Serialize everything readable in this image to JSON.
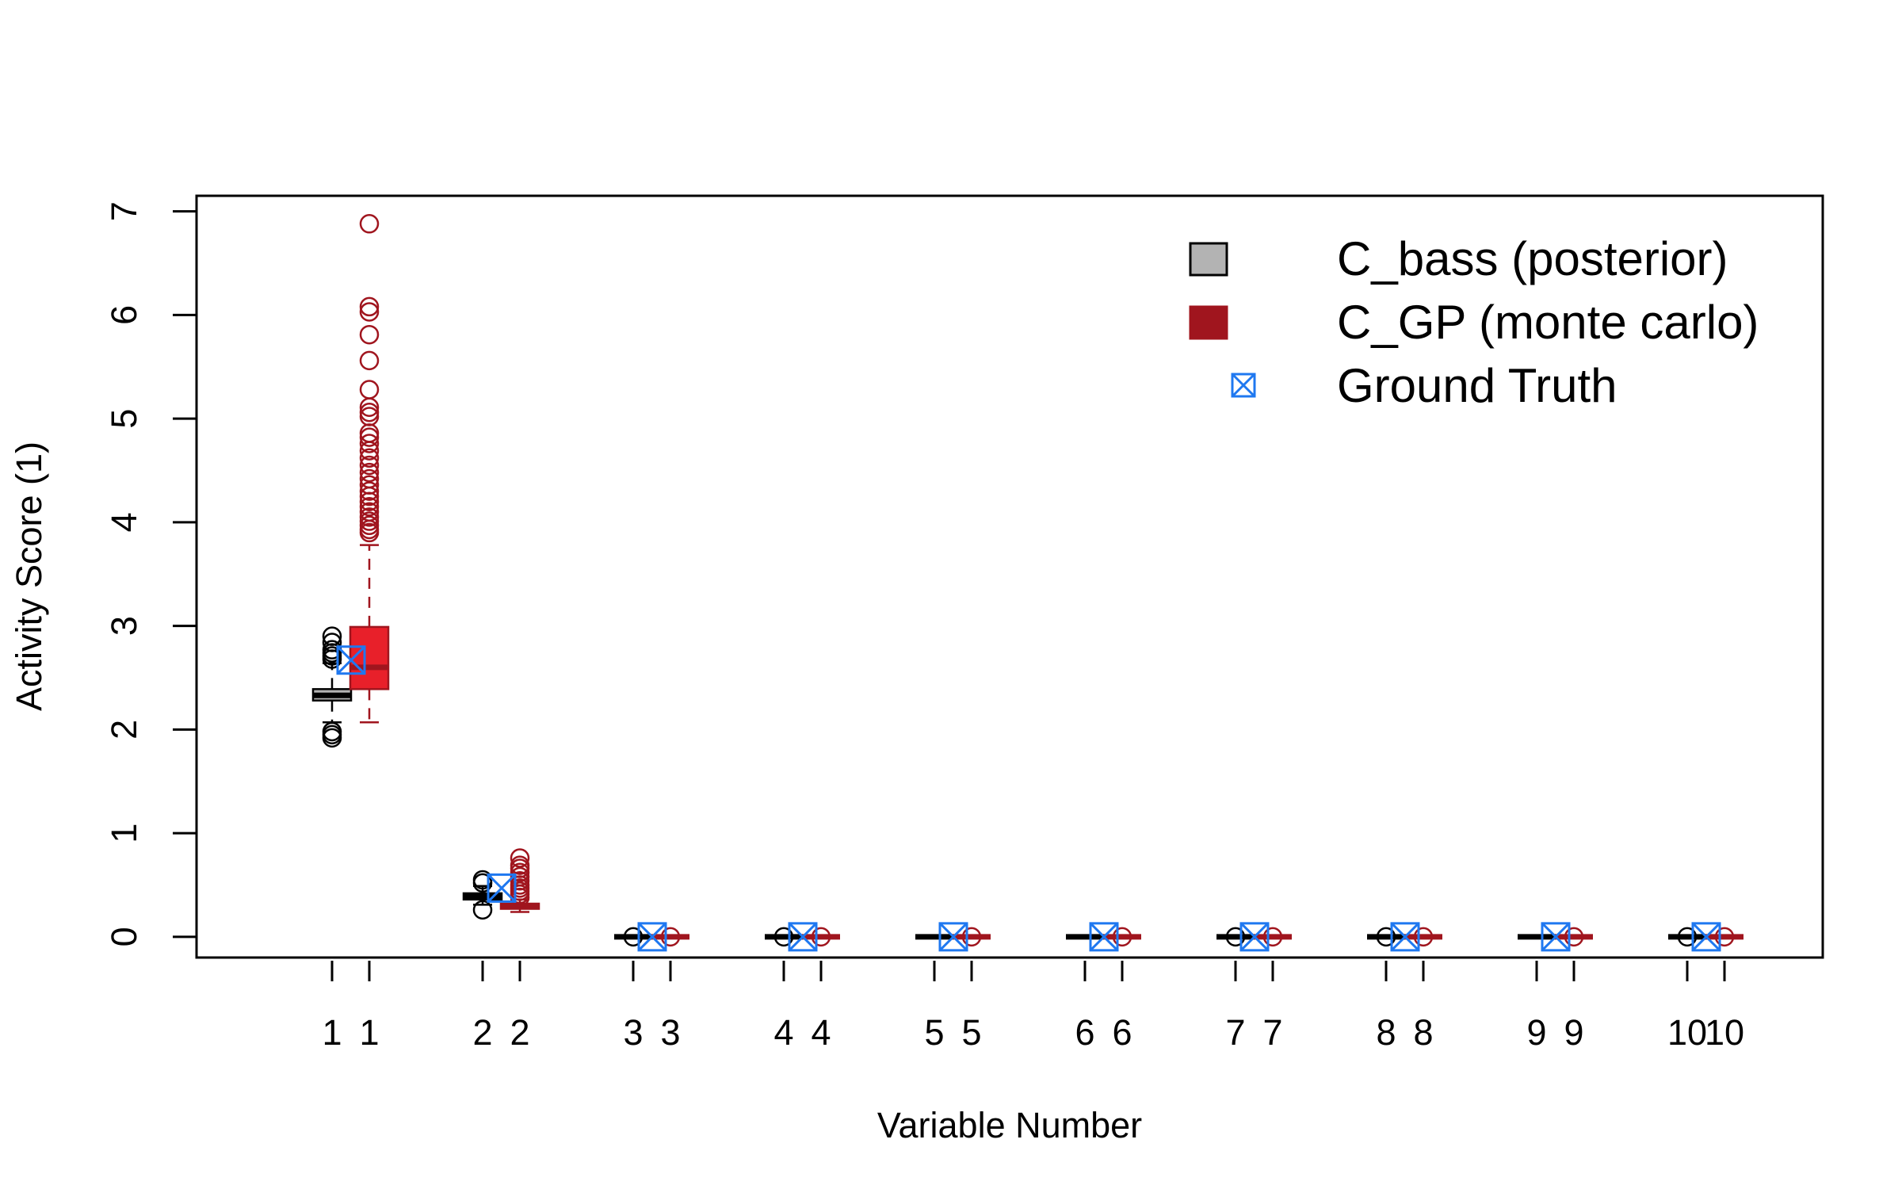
{
  "chart_data": {
    "type": "box",
    "xlabel": "Variable Number",
    "ylabel": "Activity Score (1)",
    "ylim": [
      -0.2,
      7.15
    ],
    "yticks": [
      0,
      1,
      2,
      3,
      4,
      5,
      6,
      7
    ],
    "grid": false,
    "legend_position": "top-right",
    "categories": [
      "1",
      "2",
      "3",
      "4",
      "5",
      "6",
      "7",
      "8",
      "9",
      "10"
    ],
    "tick_labels": [
      "1",
      "1",
      "2",
      "2",
      "3",
      "3",
      "4",
      "4",
      "5",
      "5",
      "6",
      "6",
      "7",
      "7",
      "8",
      "8",
      "9",
      "9",
      "10",
      "10"
    ],
    "series": [
      {
        "name": "C_bass (posterior)",
        "fill": "#b3b3b3",
        "stroke": "#000000",
        "boxes": [
          {
            "q1": 2.28,
            "median": 2.33,
            "q3": 2.39,
            "whisker_low": 2.07,
            "whisker_high": 2.64,
            "outliers": [
              1.92,
              1.95,
              1.98,
              2.68,
              2.71,
              2.74,
              2.77,
              2.84,
              2.9
            ]
          },
          {
            "q1": 0.36,
            "median": 0.39,
            "q3": 0.42,
            "whisker_low": 0.31,
            "whisker_high": 0.49,
            "outliers": [
              0.26,
              0.52,
              0.55
            ]
          },
          {
            "q1": 0,
            "median": 0,
            "q3": 0,
            "whisker_low": 0,
            "whisker_high": 0,
            "outliers": [
              0
            ]
          },
          {
            "q1": 0,
            "median": 0,
            "q3": 0,
            "whisker_low": 0,
            "whisker_high": 0,
            "outliers": [
              0
            ]
          },
          {
            "q1": 0,
            "median": 0,
            "q3": 0,
            "whisker_low": 0,
            "whisker_high": 0,
            "outliers": []
          },
          {
            "q1": 0,
            "median": 0,
            "q3": 0,
            "whisker_low": 0,
            "whisker_high": 0,
            "outliers": []
          },
          {
            "q1": 0,
            "median": 0,
            "q3": 0,
            "whisker_low": 0,
            "whisker_high": 0,
            "outliers": [
              0
            ]
          },
          {
            "q1": 0,
            "median": 0,
            "q3": 0,
            "whisker_low": 0,
            "whisker_high": 0,
            "outliers": [
              0
            ]
          },
          {
            "q1": 0,
            "median": 0,
            "q3": 0,
            "whisker_low": 0,
            "whisker_high": 0,
            "outliers": []
          },
          {
            "q1": 0,
            "median": 0,
            "q3": 0,
            "whisker_low": 0,
            "whisker_high": 0,
            "outliers": [
              0
            ]
          }
        ]
      },
      {
        "name": "C_GP (monte carlo)",
        "fill": "#e8202a",
        "legend_fill": "#a0151e",
        "stroke": "#a0151e",
        "boxes": [
          {
            "q1": 2.39,
            "median": 2.6,
            "q3": 2.99,
            "whisker_low": 2.07,
            "whisker_high": 3.78,
            "outliers": [
              3.9,
              3.93,
              3.97,
              4.01,
              4.05,
              4.1,
              4.15,
              4.2,
              4.25,
              4.3,
              4.36,
              4.42,
              4.48,
              4.55,
              4.62,
              4.69,
              4.76,
              4.82,
              4.86,
              5.02,
              5.06,
              5.11,
              5.28,
              5.56,
              5.81,
              6.03,
              6.08,
              6.88
            ]
          },
          {
            "q1": 0.27,
            "median": 0.29,
            "q3": 0.32,
            "whisker_low": 0.24,
            "whisker_high": 0.36,
            "outliers": [
              0.38,
              0.41,
              0.44,
              0.47,
              0.5,
              0.54,
              0.58,
              0.62,
              0.66,
              0.69,
              0.76
            ]
          },
          {
            "q1": 0,
            "median": 0,
            "q3": 0,
            "whisker_low": 0,
            "whisker_high": 0,
            "outliers": [
              0
            ]
          },
          {
            "q1": 0,
            "median": 0,
            "q3": 0,
            "whisker_low": 0,
            "whisker_high": 0,
            "outliers": [
              0
            ]
          },
          {
            "q1": 0,
            "median": 0,
            "q3": 0,
            "whisker_low": 0,
            "whisker_high": 0,
            "outliers": [
              0
            ]
          },
          {
            "q1": 0,
            "median": 0,
            "q3": 0,
            "whisker_low": 0,
            "whisker_high": 0,
            "outliers": [
              0
            ]
          },
          {
            "q1": 0,
            "median": 0,
            "q3": 0,
            "whisker_low": 0,
            "whisker_high": 0,
            "outliers": [
              0
            ]
          },
          {
            "q1": 0,
            "median": 0,
            "q3": 0,
            "whisker_low": 0,
            "whisker_high": 0,
            "outliers": [
              0
            ]
          },
          {
            "q1": 0,
            "median": 0,
            "q3": 0,
            "whisker_low": 0,
            "whisker_high": 0,
            "outliers": [
              0
            ]
          },
          {
            "q1": 0,
            "median": 0,
            "q3": 0,
            "whisker_low": 0,
            "whisker_high": 0,
            "outliers": [
              0
            ]
          }
        ]
      }
    ],
    "ground_truth": {
      "name": "Ground Truth",
      "color": "#1f78f0",
      "values": [
        2.67,
        0.47,
        0,
        0,
        0,
        0,
        0,
        0,
        0,
        0
      ]
    }
  }
}
